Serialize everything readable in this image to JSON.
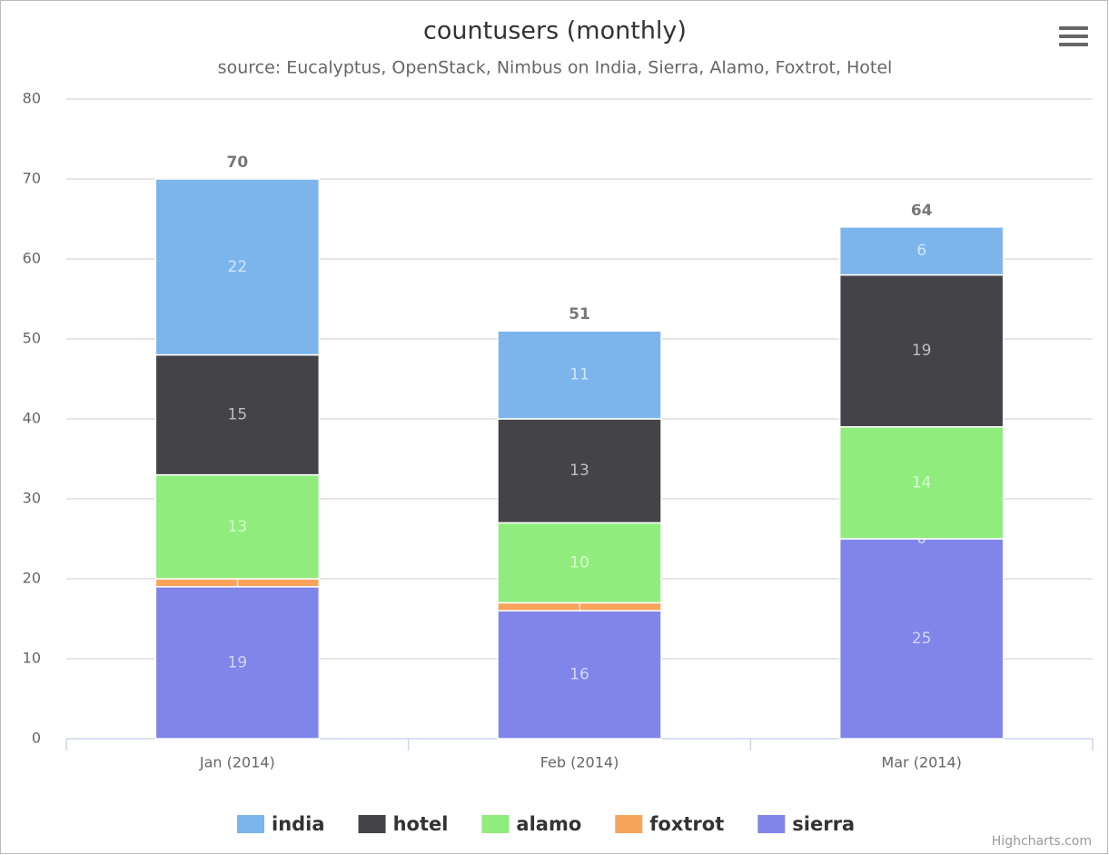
{
  "chart_data": {
    "type": "bar",
    "stacked": true,
    "title": "countusers (monthly)",
    "subtitle": "source: Eucalyptus, OpenStack, Nimbus on India, Sierra, Alamo, Foxtrot, Hotel",
    "categories": [
      "Jan (2014)",
      "Feb (2014)",
      "Mar (2014)"
    ],
    "series": [
      {
        "name": "india",
        "color": "#7cb5ec",
        "values": [
          22,
          11,
          6
        ]
      },
      {
        "name": "hotel",
        "color": "#434348",
        "values": [
          15,
          13,
          19
        ]
      },
      {
        "name": "alamo",
        "color": "#90ed7d",
        "values": [
          13,
          10,
          14
        ]
      },
      {
        "name": "foxtrot",
        "color": "#f7a35c",
        "values": [
          1,
          1,
          0
        ]
      },
      {
        "name": "sierra",
        "color": "#8085e9",
        "values": [
          19,
          16,
          25
        ]
      }
    ],
    "stack_labels": [
      70,
      51,
      64
    ],
    "ylim": [
      0,
      80
    ],
    "yticks": [
      0,
      10,
      20,
      30,
      40,
      50,
      60,
      70,
      80
    ],
    "grid": true,
    "legend": "bottom",
    "credits": "Highcharts.com"
  }
}
